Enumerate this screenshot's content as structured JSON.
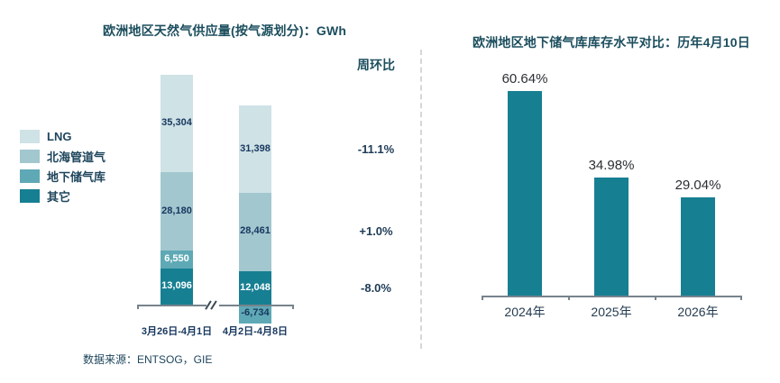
{
  "divider_color": "#d6d6d6",
  "text_colors": {
    "title": "#1c4e5e",
    "value_navy": "#17375e",
    "pct_dark": "#2b2f33"
  },
  "chart_data": [
    {
      "type": "bar",
      "stacked": true,
      "title": "欧洲地区天然气供应量(按气源划分)：GWh",
      "unit": "GWh",
      "categories": [
        "3月26日-4月1日",
        "4月2日-4月8日"
      ],
      "series": [
        {
          "name": "LNG",
          "color": "#cfe2e6",
          "values": [
            35304,
            31398
          ],
          "label_colors": [
            "#17375e",
            "#17375e"
          ]
        },
        {
          "name": "北海管道气",
          "color": "#a2c7cf",
          "values": [
            28180,
            28461
          ],
          "label_colors": [
            "#17375e",
            "#17375e"
          ]
        },
        {
          "name": "地下储气库",
          "color": "#5ea9b5",
          "values": [
            6550,
            -6734
          ],
          "label_colors": [
            "#ffffff",
            "#17375e"
          ]
        },
        {
          "name": "其它",
          "color": "#177f92",
          "values": [
            13096,
            12048
          ],
          "label_colors": [
            "#ffffff",
            "#ffffff"
          ]
        }
      ],
      "wow_header": "周环比",
      "wow": [
        {
          "series": "LNG",
          "value": "-11.1%"
        },
        {
          "series": "北海管道气",
          "value": "+1.0%"
        },
        {
          "series": "其它",
          "value": "-8.0%"
        }
      ],
      "axis_break": true,
      "legend_position": "left",
      "source": "数据来源：ENTSOG，GIE"
    },
    {
      "type": "bar",
      "title": "欧洲地区地下储气库库存水平对比：历年4月10日",
      "categories": [
        "2024年",
        "2025年",
        "2026年"
      ],
      "values": [
        60.64,
        34.98,
        29.04
      ],
      "value_labels": [
        "60.64%",
        "34.98%",
        "29.04%"
      ],
      "bar_color": "#177f92",
      "ylim": [
        0,
        65
      ],
      "unit": "%",
      "grid": false,
      "legend": false
    }
  ]
}
